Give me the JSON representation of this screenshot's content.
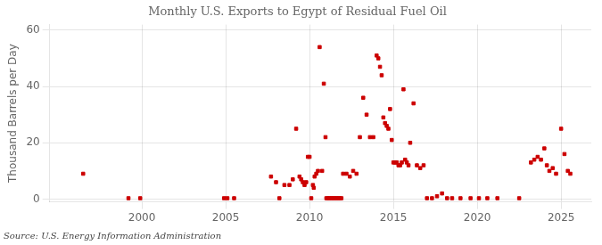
{
  "chart_data": {
    "type": "scatter",
    "title": "Monthly U.S. Exports to Egypt of Residual Fuel Oil",
    "ylabel": "Thousand Barrels per Day",
    "source": "Source: U.S. Energy Information Administration",
    "color": "#cc0000",
    "marker": "square",
    "grid": true,
    "xlim": [
      1994.5,
      2026.8
    ],
    "ylim": [
      -1,
      62
    ],
    "xticks": [
      2000,
      2005,
      2010,
      2015,
      2020,
      2025
    ],
    "yticks": [
      0,
      20,
      40,
      60
    ],
    "x": [
      1996.5,
      1999.2,
      1999.9,
      2004.9,
      2005.1,
      2005.5,
      2007.7,
      2008.0,
      2008.2,
      2008.5,
      2008.8,
      2009.0,
      2009.2,
      2009.4,
      2009.5,
      2009.6,
      2009.7,
      2009.8,
      2009.9,
      2010.0,
      2010.1,
      2010.2,
      2010.25,
      2010.3,
      2010.4,
      2010.5,
      2010.6,
      2010.75,
      2010.85,
      2010.95,
      2011.0,
      2011.1,
      2011.2,
      2011.3,
      2011.4,
      2011.5,
      2011.6,
      2011.7,
      2011.8,
      2011.9,
      2012.0,
      2012.2,
      2012.4,
      2012.6,
      2012.8,
      2013.0,
      2013.2,
      2013.4,
      2013.6,
      2013.8,
      2014.0,
      2014.1,
      2014.2,
      2014.3,
      2014.4,
      2014.5,
      2014.6,
      2014.7,
      2014.8,
      2014.9,
      2015.0,
      2015.1,
      2015.2,
      2015.3,
      2015.4,
      2015.5,
      2015.6,
      2015.7,
      2015.8,
      2015.9,
      2016.0,
      2016.2,
      2016.4,
      2016.6,
      2016.8,
      2017.0,
      2017.3,
      2017.6,
      2017.9,
      2018.2,
      2018.5,
      2019.0,
      2019.6,
      2020.1,
      2020.6,
      2021.2,
      2022.5,
      2023.2,
      2023.4,
      2023.6,
      2023.8,
      2024.0,
      2024.15,
      2024.3,
      2024.5,
      2024.7,
      2025.0,
      2025.2,
      2025.4,
      2025.55
    ],
    "values": [
      9,
      0.3,
      0.3,
      0.3,
      0.3,
      0.3,
      8,
      6,
      0.3,
      5,
      5,
      7,
      25,
      8,
      7,
      6,
      5,
      6,
      15,
      15,
      0.3,
      5,
      4,
      8,
      9,
      10,
      54,
      10,
      41,
      22,
      0.3,
      0.3,
      0.3,
      0.3,
      0.3,
      0.3,
      0.3,
      0.3,
      0.3,
      0.3,
      9,
      9,
      8,
      10,
      9,
      22,
      36,
      30,
      22,
      22,
      51,
      50,
      47,
      44,
      29,
      27,
      26,
      25,
      32,
      21,
      13,
      13,
      13,
      12,
      12,
      13,
      39,
      14,
      13,
      12,
      20,
      34,
      12,
      11,
      12,
      0.3,
      0.3,
      1,
      2,
      0.3,
      0.3,
      0.3,
      0.3,
      0.3,
      0.3,
      0.3,
      0.3,
      13,
      14,
      15,
      14,
      18,
      12,
      10,
      11,
      9,
      25,
      16,
      10,
      9
    ]
  }
}
